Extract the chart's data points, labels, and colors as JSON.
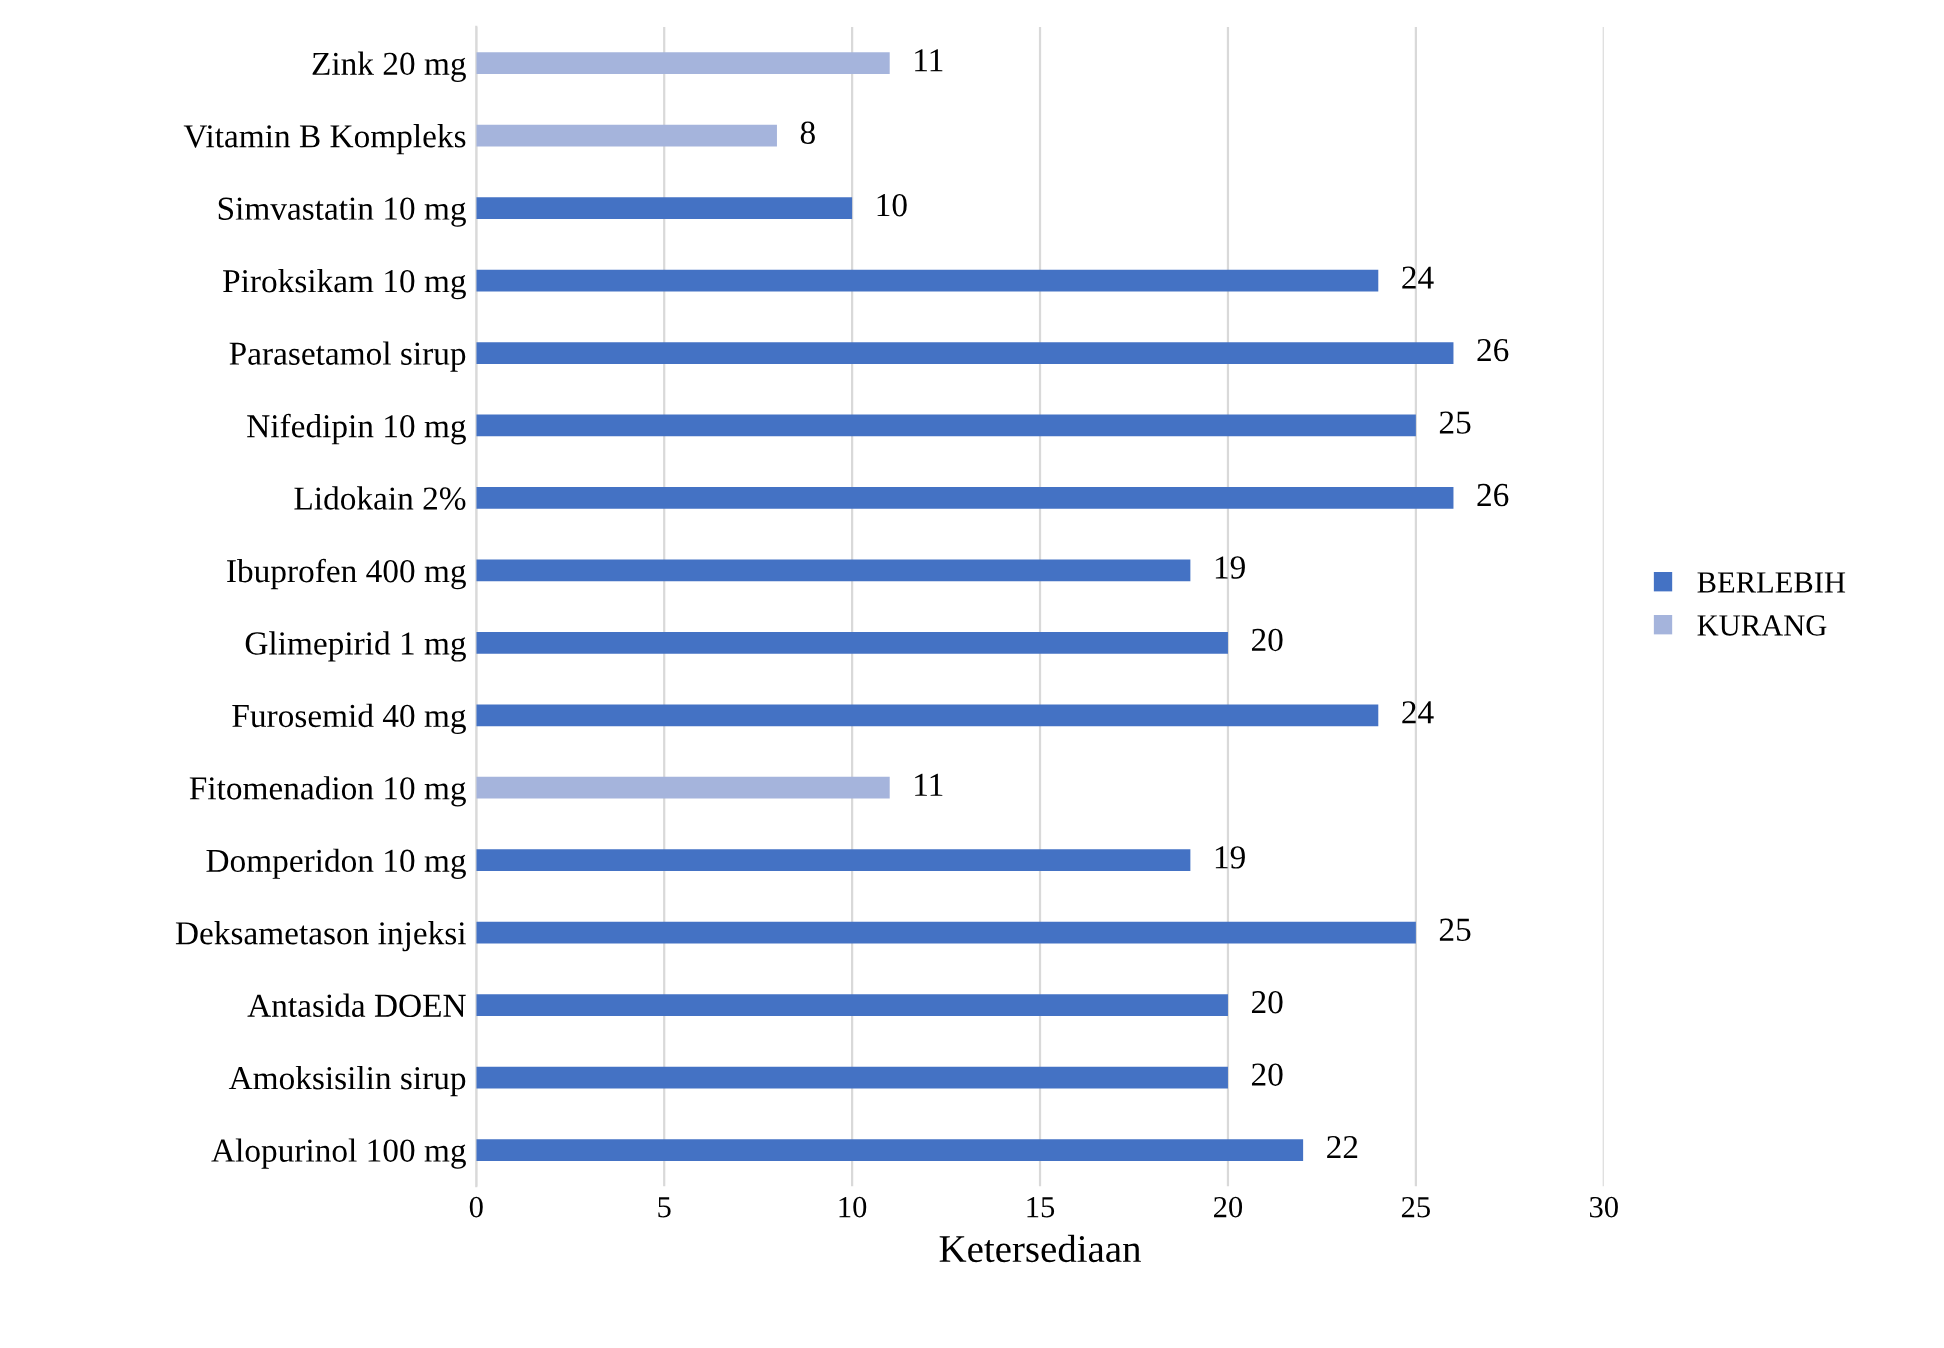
{
  "chart_data": {
    "type": "bar",
    "orientation": "horizontal",
    "xlabel": "Ketersediaan",
    "categories": [
      "Zink 20 mg",
      "Vitamin B Kompleks",
      "Simvastatin 10 mg",
      "Piroksikam 10 mg",
      "Parasetamol sirup",
      "Nifedipin 10 mg",
      "Lidokain 2%",
      "Ibuprofen 400 mg",
      "Glimepirid 1 mg",
      "Furosemid 40 mg",
      "Fitomenadion 10 mg",
      "Domperidon 10 mg",
      "Deksametason injeksi",
      "Antasida DOEN",
      "Amoksisilin sirup",
      "Alopurinol 100 mg"
    ],
    "series": [
      {
        "name": "BERLEBIH",
        "color": "#4472c4",
        "values": [
          null,
          null,
          10,
          24,
          26,
          25,
          26,
          19,
          20,
          24,
          null,
          19,
          25,
          20,
          20,
          22
        ]
      },
      {
        "name": "KURANG",
        "color": "#a5b4dc",
        "values": [
          11,
          8,
          null,
          null,
          null,
          null,
          null,
          null,
          null,
          null,
          11,
          null,
          null,
          null,
          null,
          null
        ]
      }
    ],
    "xlim": [
      0,
      30
    ],
    "xticks": [
      0,
      5,
      10,
      15,
      20,
      25,
      30
    ],
    "grid": "x",
    "legend": "right",
    "data_labels": true
  }
}
